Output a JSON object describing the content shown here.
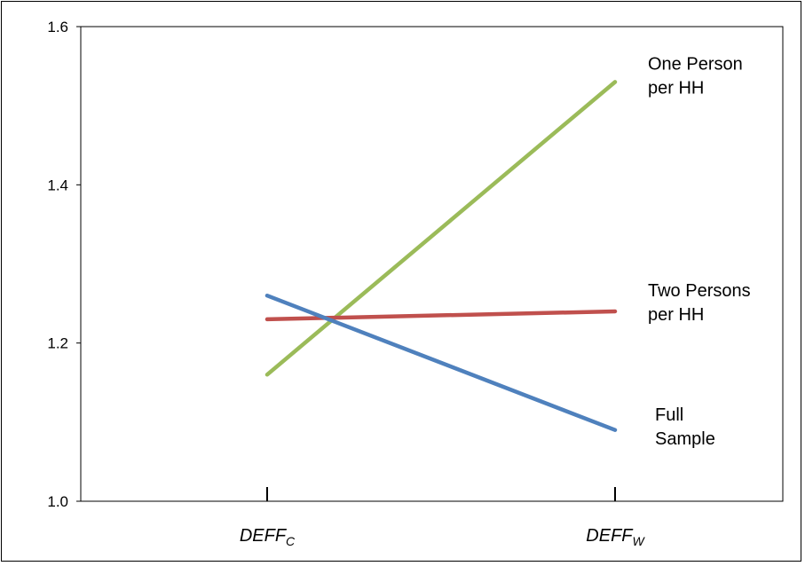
{
  "chart_data": {
    "type": "line",
    "categories": [
      {
        "main": "DEFF",
        "sub": "C"
      },
      {
        "main": "DEFF",
        "sub": "W"
      }
    ],
    "ylim": [
      1.0,
      1.6
    ],
    "yticks": [
      "1.0",
      "1.2",
      "1.4",
      "1.6"
    ],
    "grid": false,
    "series": [
      {
        "name_lines": [
          "One Person",
          "per HH"
        ],
        "values": [
          1.16,
          1.53
        ],
        "color": "#9bbb59"
      },
      {
        "name_lines": [
          "Two Persons",
          "per HH"
        ],
        "values": [
          1.23,
          1.24
        ],
        "color": "#c0504d"
      },
      {
        "name_lines": [
          "Full",
          "Sample"
        ],
        "values": [
          1.26,
          1.09
        ],
        "color": "#4f81bd"
      }
    ]
  }
}
